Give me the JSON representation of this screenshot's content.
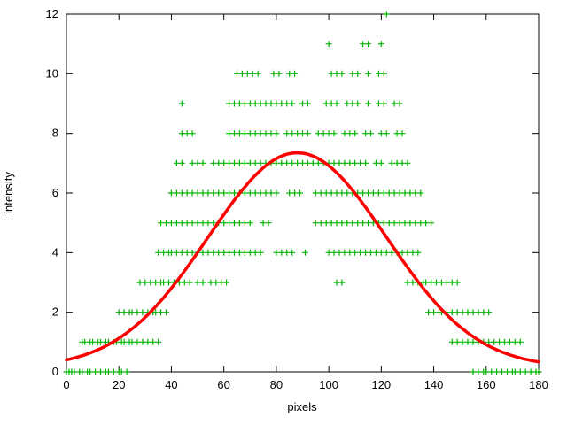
{
  "window": {
    "background": "#ffffff"
  },
  "chart_data": {
    "type": "scatter",
    "title": "",
    "xlabel": "pixels",
    "ylabel": "intensity",
    "xlim": [
      0,
      180
    ],
    "ylim": [
      0,
      12
    ],
    "xticks": [
      0,
      20,
      40,
      60,
      80,
      100,
      120,
      140,
      160,
      180
    ],
    "yticks": [
      0,
      2,
      4,
      6,
      8,
      10,
      12
    ],
    "grid": false,
    "legend": "none",
    "marker": "plus",
    "marker_color": "#00b400",
    "axis_color": "#000000",
    "scatter_bands": [
      {
        "y": 0,
        "x": [
          0,
          1,
          2,
          3,
          5,
          6,
          8,
          9,
          11,
          13,
          15,
          16,
          18,
          20,
          21,
          23,
          155,
          157,
          159,
          160,
          162,
          164,
          166,
          168,
          170,
          171,
          173,
          175,
          177,
          179,
          180
        ]
      },
      {
        "y": 1,
        "x": [
          6,
          7,
          9,
          10,
          12,
          13,
          15,
          16,
          18,
          19,
          21,
          22,
          24,
          25,
          27,
          29,
          31,
          33,
          35,
          147,
          149,
          151,
          153,
          155,
          157,
          159,
          161,
          163,
          165,
          167,
          169,
          171,
          173
        ]
      },
      {
        "y": 2,
        "x": [
          20,
          22,
          24,
          25,
          27,
          29,
          31,
          33,
          34,
          36,
          38,
          138,
          140,
          142,
          143,
          145,
          147,
          149,
          151,
          153,
          155,
          157,
          159,
          161
        ]
      },
      {
        "y": 3,
        "x": [
          28,
          30,
          32,
          34,
          36,
          37,
          39,
          41,
          43,
          45,
          47,
          50,
          52,
          55,
          57,
          59,
          61,
          103,
          105,
          130,
          132,
          134,
          136,
          137,
          139,
          141,
          143,
          145,
          147,
          149
        ]
      },
      {
        "y": 4,
        "x": [
          35,
          37,
          39,
          40,
          42,
          44,
          46,
          48,
          50,
          52,
          54,
          56,
          58,
          60,
          62,
          64,
          66,
          68,
          70,
          72,
          74,
          80,
          82,
          84,
          86,
          91,
          100,
          102,
          104,
          106,
          108,
          110,
          112,
          114,
          116,
          118,
          120,
          122,
          124,
          126,
          128,
          130,
          132,
          134
        ]
      },
      {
        "y": 5,
        "x": [
          36,
          38,
          40,
          42,
          44,
          46,
          48,
          50,
          52,
          54,
          56,
          58,
          60,
          62,
          64,
          66,
          68,
          70,
          75,
          77,
          95,
          97,
          99,
          101,
          103,
          105,
          107,
          109,
          111,
          113,
          115,
          117,
          119,
          121,
          123,
          125,
          127,
          129,
          131,
          133,
          135,
          137,
          139
        ]
      },
      {
        "y": 6,
        "x": [
          40,
          42,
          44,
          46,
          48,
          50,
          52,
          54,
          56,
          58,
          60,
          62,
          64,
          66,
          68,
          70,
          72,
          74,
          76,
          78,
          80,
          85,
          87,
          89,
          95,
          97,
          99,
          101,
          103,
          105,
          107,
          109,
          111,
          113,
          115,
          117,
          119,
          121,
          123,
          125,
          127,
          129,
          131,
          133,
          135
        ]
      },
      {
        "y": 7,
        "x": [
          42,
          44,
          48,
          50,
          52,
          56,
          58,
          60,
          62,
          64,
          66,
          68,
          70,
          72,
          74,
          76,
          78,
          80,
          82,
          84,
          86,
          88,
          90,
          92,
          94,
          96,
          98,
          100,
          102,
          104,
          106,
          108,
          110,
          112,
          114,
          118,
          120,
          124,
          126,
          128,
          130
        ]
      },
      {
        "y": 8,
        "x": [
          44,
          46,
          48,
          62,
          64,
          66,
          68,
          70,
          72,
          74,
          76,
          78,
          80,
          84,
          86,
          88,
          90,
          92,
          96,
          98,
          100,
          102,
          106,
          108,
          110,
          114,
          116,
          120,
          122,
          126,
          128
        ]
      },
      {
        "y": 9,
        "x": [
          44,
          62,
          64,
          66,
          68,
          70,
          72,
          74,
          76,
          78,
          80,
          82,
          84,
          86,
          90,
          92,
          99,
          101,
          103,
          107,
          109,
          111,
          115,
          119,
          121,
          125,
          127
        ]
      },
      {
        "y": 10,
        "x": [
          65,
          67,
          69,
          71,
          73,
          79,
          81,
          85,
          87,
          101,
          103,
          105,
          109,
          111,
          115,
          119,
          121
        ]
      },
      {
        "y": 11,
        "x": [
          100,
          113,
          115,
          120
        ]
      },
      {
        "y": 12,
        "x": [
          122
        ]
      }
    ],
    "fit_curve": {
      "type": "gaussian",
      "amplitude": 7.2,
      "mean": 88,
      "sigma": 34,
      "offset": 0.15,
      "peak_value": 7.35,
      "color": "#ff0000",
      "linewidth": 3.5
    }
  }
}
